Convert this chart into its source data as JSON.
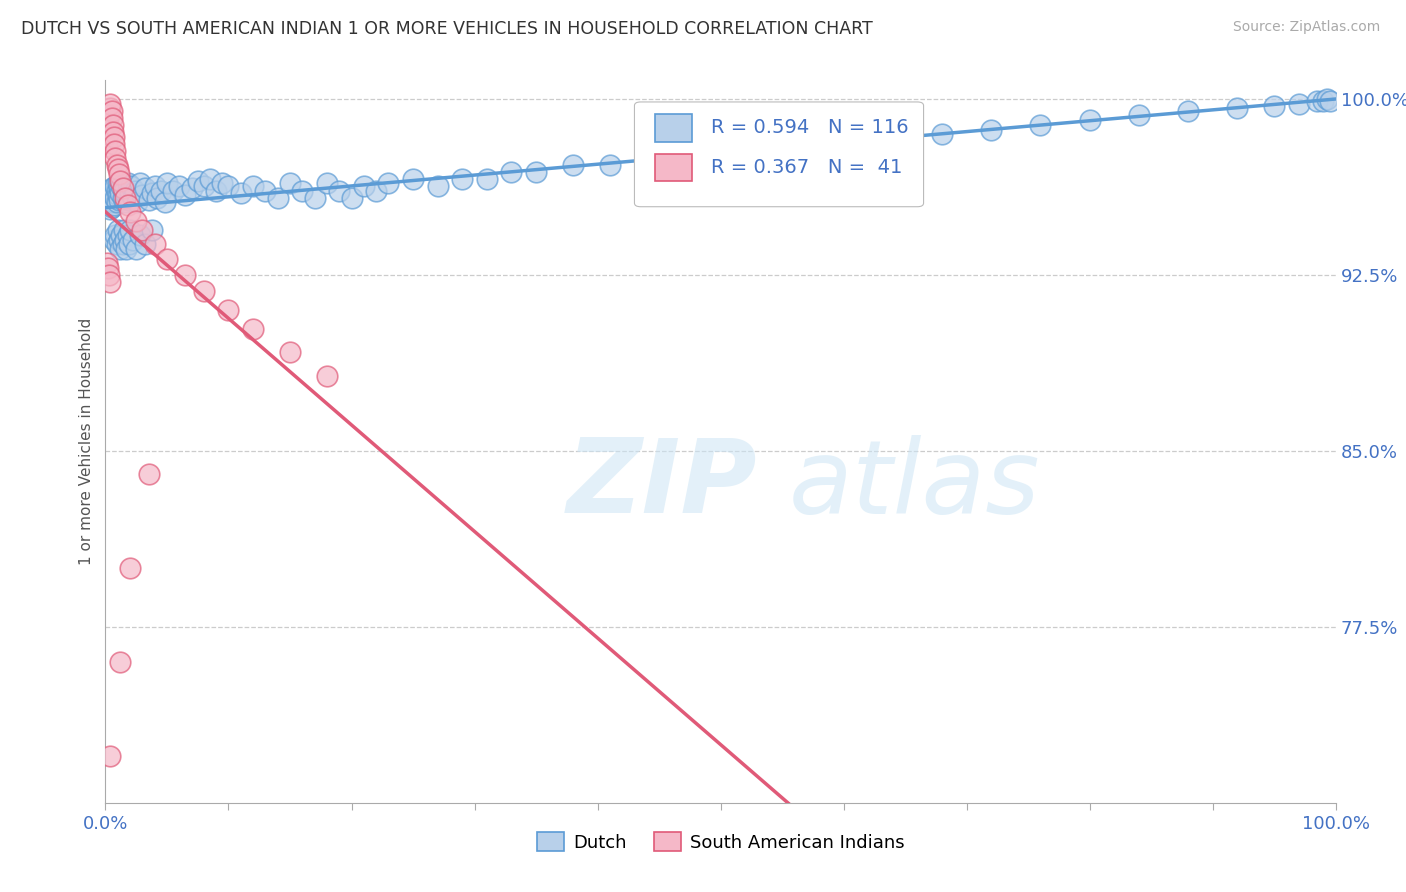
{
  "title": "DUTCH VS SOUTH AMERICAN INDIAN 1 OR MORE VEHICLES IN HOUSEHOLD CORRELATION CHART",
  "source": "Source: ZipAtlas.com",
  "ylabel": "1 or more Vehicles in Household",
  "ytick_labels": [
    "77.5%",
    "85.0%",
    "92.5%",
    "100.0%"
  ],
  "ytick_values": [
    0.775,
    0.85,
    0.925,
    1.0
  ],
  "legend_label1": "Dutch",
  "legend_label2": "South American Indians",
  "r1": 0.594,
  "n1": 116,
  "r2": 0.367,
  "n2": 41,
  "color_dutch_fill": "#b8d0ea",
  "color_dutch_edge": "#5b9bd5",
  "color_sa_fill": "#f5b8c8",
  "color_sa_edge": "#e05a78",
  "color_title": "#333333",
  "color_source": "#aaaaaa",
  "color_axis_text": "#4472c4",
  "color_grid": "#cccccc",
  "xmin": 0.0,
  "xmax": 1.0,
  "ymin": 0.7,
  "ymax": 1.008,
  "dutch_x": [
    0.001,
    0.002,
    0.002,
    0.003,
    0.003,
    0.004,
    0.004,
    0.005,
    0.005,
    0.005,
    0.006,
    0.006,
    0.007,
    0.007,
    0.008,
    0.008,
    0.009,
    0.009,
    0.01,
    0.01,
    0.011,
    0.011,
    0.012,
    0.012,
    0.013,
    0.014,
    0.015,
    0.016,
    0.017,
    0.018,
    0.019,
    0.02,
    0.021,
    0.022,
    0.024,
    0.026,
    0.028,
    0.03,
    0.032,
    0.035,
    0.038,
    0.04,
    0.042,
    0.045,
    0.048,
    0.05,
    0.055,
    0.06,
    0.065,
    0.07,
    0.075,
    0.08,
    0.085,
    0.09,
    0.095,
    0.1,
    0.11,
    0.12,
    0.13,
    0.14,
    0.15,
    0.16,
    0.17,
    0.18,
    0.19,
    0.2,
    0.21,
    0.22,
    0.23,
    0.25,
    0.27,
    0.29,
    0.31,
    0.33,
    0.35,
    0.38,
    0.41,
    0.44,
    0.47,
    0.5,
    0.53,
    0.56,
    0.6,
    0.64,
    0.68,
    0.72,
    0.76,
    0.8,
    0.84,
    0.88,
    0.92,
    0.95,
    0.97,
    0.985,
    0.99,
    0.993,
    0.995,
    0.007,
    0.008,
    0.009,
    0.01,
    0.011,
    0.012,
    0.013,
    0.014,
    0.015,
    0.016,
    0.017,
    0.018,
    0.019,
    0.02,
    0.022,
    0.025,
    0.028,
    0.032,
    0.038
  ],
  "dutch_y": [
    0.958,
    0.961,
    0.955,
    0.96,
    0.956,
    0.959,
    0.953,
    0.962,
    0.957,
    0.954,
    0.961,
    0.956,
    0.96,
    0.955,
    0.963,
    0.958,
    0.961,
    0.956,
    0.964,
    0.959,
    0.962,
    0.957,
    0.965,
    0.96,
    0.963,
    0.958,
    0.961,
    0.956,
    0.959,
    0.964,
    0.957,
    0.96,
    0.963,
    0.958,
    0.961,
    0.956,
    0.964,
    0.959,
    0.962,
    0.957,
    0.96,
    0.963,
    0.958,
    0.961,
    0.956,
    0.964,
    0.961,
    0.963,
    0.959,
    0.962,
    0.965,
    0.963,
    0.966,
    0.961,
    0.964,
    0.963,
    0.96,
    0.963,
    0.961,
    0.958,
    0.964,
    0.961,
    0.958,
    0.964,
    0.961,
    0.958,
    0.963,
    0.961,
    0.964,
    0.966,
    0.963,
    0.966,
    0.966,
    0.969,
    0.969,
    0.972,
    0.972,
    0.975,
    0.975,
    0.978,
    0.978,
    0.981,
    0.982,
    0.984,
    0.985,
    0.987,
    0.989,
    0.991,
    0.993,
    0.995,
    0.996,
    0.997,
    0.998,
    0.999,
    0.999,
    1.0,
    0.999,
    0.94,
    0.942,
    0.938,
    0.944,
    0.94,
    0.936,
    0.942,
    0.938,
    0.944,
    0.94,
    0.936,
    0.942,
    0.938,
    0.944,
    0.94,
    0.936,
    0.942,
    0.938,
    0.944
  ],
  "sa_x": [
    0.001,
    0.002,
    0.002,
    0.003,
    0.003,
    0.004,
    0.004,
    0.005,
    0.005,
    0.006,
    0.006,
    0.007,
    0.007,
    0.008,
    0.008,
    0.009,
    0.01,
    0.011,
    0.012,
    0.014,
    0.016,
    0.018,
    0.02,
    0.025,
    0.03,
    0.04,
    0.05,
    0.065,
    0.08,
    0.1,
    0.12,
    0.15,
    0.18,
    0.001,
    0.002,
    0.003,
    0.004,
    0.005,
    0.006,
    0.007,
    0.008
  ],
  "sa_y": [
    0.98,
    0.985,
    0.99,
    0.988,
    0.993,
    0.996,
    0.998,
    0.995,
    0.992,
    0.989,
    0.986,
    0.984,
    0.981,
    0.978,
    0.975,
    0.972,
    0.97,
    0.968,
    0.965,
    0.962,
    0.958,
    0.955,
    0.952,
    0.948,
    0.944,
    0.938,
    0.932,
    0.925,
    0.918,
    0.91,
    0.902,
    0.892,
    0.882,
    0.93,
    0.928,
    0.925,
    0.922,
    0.918,
    0.915,
    0.912,
    0.908
  ]
}
